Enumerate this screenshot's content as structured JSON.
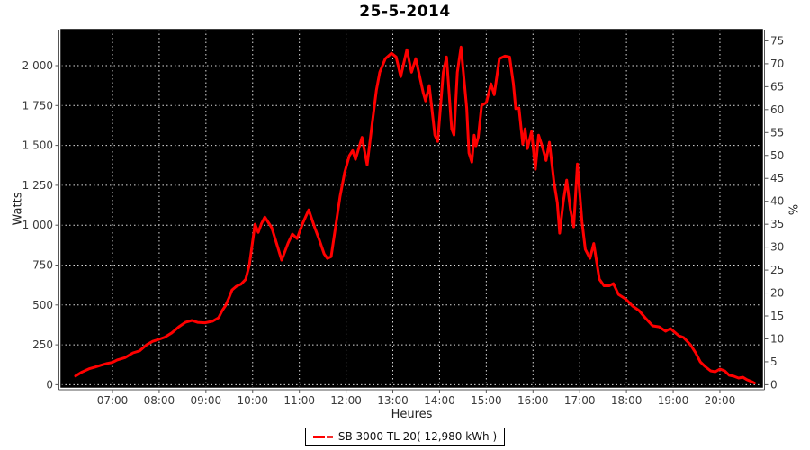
{
  "chart": {
    "title": "25-5-2014",
    "x_axis": {
      "label": "Heures",
      "tick_hours": [
        7,
        8,
        9,
        10,
        11,
        12,
        13,
        14,
        15,
        16,
        17,
        18,
        19,
        20
      ],
      "tick_labels": [
        "07:00",
        "08:00",
        "09:00",
        "10:00",
        "11:00",
        "12:00",
        "13:00",
        "14:00",
        "15:00",
        "16:00",
        "17:00",
        "18:00",
        "19:00",
        "20:00"
      ]
    },
    "y_axis_left": {
      "label": "Watts",
      "tick_values": [
        0,
        250,
        500,
        750,
        1000,
        1250,
        1500,
        1750,
        2000
      ],
      "tick_labels": [
        "0",
        "250",
        "500",
        "750",
        "1 000",
        "1 250",
        "1 500",
        "1 750",
        "2 000"
      ]
    },
    "y_axis_right": {
      "label": "%",
      "tick_values": [
        0,
        5,
        10,
        15,
        20,
        25,
        30,
        35,
        40,
        45,
        50,
        55,
        60,
        65,
        70,
        75
      ],
      "tick_labels": [
        "0",
        "5",
        "10",
        "15",
        "20",
        "25",
        "30",
        "35",
        "40",
        "45",
        "50",
        "55",
        "60",
        "65",
        "70",
        "75"
      ]
    },
    "legend": {
      "label": "SB 3000 TL 20( 12,980 kWh )",
      "marker": "red-line"
    },
    "colors": {
      "series": "#ff0000",
      "plot_background": "#000000",
      "gridline": "#d9d9d9",
      "axis": "#555555",
      "tick_text": "#3a3a3a",
      "page_background": "#ffffff"
    }
  },
  "chart_data": {
    "type": "line",
    "title": "25-5-2014",
    "xlabel": "Heures",
    "ylabel": "Watts",
    "ylabel_right": "%",
    "grid": true,
    "legend_position": "bottom",
    "xlim_hours": [
      5.9,
      20.91
    ],
    "ylim_watts": [
      0,
      2226
    ],
    "ylim_percent": [
      0,
      77.5
    ],
    "series": [
      {
        "name": "SB 3000 TL 20( 12,980 kWh )",
        "color": "#ff0000",
        "x_hours": [
          6.21,
          6.35,
          6.5,
          6.62,
          6.75,
          6.88,
          7.0,
          7.1,
          7.27,
          7.44,
          7.58,
          7.73,
          7.86,
          8.0,
          8.12,
          8.27,
          8.42,
          8.56,
          8.7,
          8.82,
          8.98,
          9.14,
          9.27,
          9.35,
          9.42,
          9.5,
          9.56,
          9.65,
          9.75,
          9.85,
          9.93,
          10.0,
          10.05,
          10.12,
          10.19,
          10.26,
          10.41,
          10.51,
          10.62,
          10.76,
          10.85,
          10.95,
          11.08,
          11.2,
          11.33,
          11.43,
          11.53,
          11.6,
          11.68,
          11.78,
          11.87,
          11.97,
          12.07,
          12.14,
          12.2,
          12.34,
          12.45,
          12.55,
          12.65,
          12.72,
          12.84,
          12.97,
          13.07,
          13.17,
          13.3,
          13.4,
          13.49,
          13.65,
          13.7,
          13.78,
          13.9,
          13.96,
          14.08,
          14.15,
          14.26,
          14.31,
          14.38,
          14.46,
          14.58,
          14.63,
          14.69,
          14.74,
          14.78,
          14.83,
          14.9,
          15.0,
          15.1,
          15.17,
          15.28,
          15.4,
          15.5,
          15.58,
          15.63,
          15.7,
          15.78,
          15.83,
          15.88,
          15.97,
          16.05,
          16.12,
          16.2,
          16.28,
          16.35,
          16.45,
          16.52,
          16.57,
          16.65,
          16.72,
          16.8,
          16.87,
          16.95,
          17.05,
          17.12,
          17.22,
          17.3,
          17.42,
          17.52,
          17.63,
          17.72,
          17.83,
          17.98,
          18.13,
          18.27,
          18.4,
          18.56,
          18.7,
          18.84,
          18.94,
          19.12,
          19.22,
          19.37,
          19.48,
          19.58,
          19.68,
          19.8,
          19.9,
          20.0,
          20.1,
          20.2,
          20.3,
          20.4,
          20.49,
          20.58,
          20.68,
          20.74
        ],
        "watts": [
          55,
          80,
          100,
          110,
          122,
          133,
          140,
          155,
          170,
          200,
          212,
          250,
          272,
          285,
          298,
          325,
          363,
          391,
          403,
          391,
          388,
          398,
          420,
          465,
          495,
          549,
          594,
          617,
          630,
          660,
          750,
          900,
          1006,
          955,
          1010,
          1051,
          984,
          888,
          781,
          888,
          944,
          916,
          1017,
          1096,
          984,
          905,
          820,
          792,
          803,
          1000,
          1180,
          1330,
          1435,
          1468,
          1412,
          1550,
          1378,
          1620,
          1847,
          1959,
          2044,
          2078,
          2055,
          1931,
          2100,
          1959,
          2044,
          1830,
          1779,
          1875,
          1565,
          1525,
          1959,
          2055,
          1604,
          1565,
          1959,
          2117,
          1734,
          1452,
          1395,
          1564,
          1497,
          1553,
          1751,
          1768,
          1886,
          1818,
          2044,
          2060,
          2055,
          1886,
          1730,
          1735,
          1508,
          1604,
          1480,
          1587,
          1350,
          1564,
          1491,
          1406,
          1520,
          1270,
          1140,
          950,
          1150,
          1283,
          1100,
          989,
          1384,
          1018,
          848,
          792,
          885,
          662,
          620,
          620,
          634,
          566,
          538,
          493,
          465,
          420,
          369,
          363,
          335,
          352,
          307,
          296,
          250,
          200,
          143,
          115,
          87,
          81,
          98,
          87,
          59,
          53,
          42,
          47,
          31,
          19,
          10
        ]
      }
    ]
  }
}
